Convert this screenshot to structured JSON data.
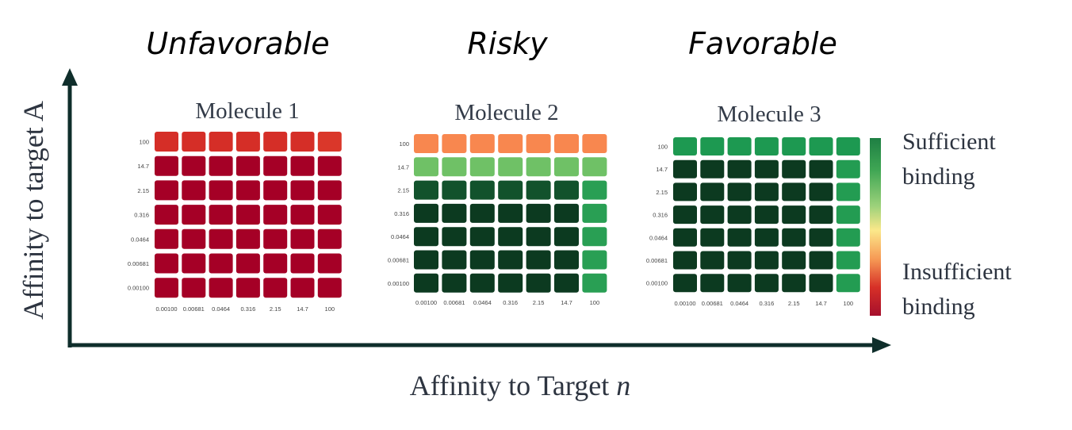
{
  "categories": [
    {
      "label": "Unfavorable"
    },
    {
      "label": "Risky"
    },
    {
      "label": "Favorable"
    }
  ],
  "axes": {
    "y_label": "Affinity to target A",
    "x_label_main": "Affinity to Target ",
    "x_label_italic": "n"
  },
  "legend": {
    "top_line1": "Sufficient",
    "top_line2": "binding",
    "bottom_line1": "Insufficient",
    "bottom_line2": "binding",
    "colors": [
      "#006837",
      "#1a9850",
      "#66bd63",
      "#d9ef8b",
      "#fee08b",
      "#fdae61",
      "#f46d43",
      "#d73027",
      "#a50026"
    ]
  },
  "chart_data": [
    {
      "type": "heatmap",
      "title": "Molecule 1",
      "row_labels": [
        "100",
        "14.7",
        "2.15",
        "0.316",
        "0.0464",
        "0.00681",
        "0.00100"
      ],
      "col_labels": [
        "0.00100",
        "0.00681",
        "0.0464",
        "0.316",
        "2.15",
        "14.7",
        "100"
      ],
      "values": [
        [
          0.12,
          0.12,
          0.12,
          0.12,
          0.12,
          0.12,
          0.14
        ],
        [
          0.0,
          0.0,
          0.0,
          0.0,
          0.0,
          0.0,
          0.0
        ],
        [
          0.0,
          0.0,
          0.0,
          0.0,
          0.0,
          0.0,
          0.0
        ],
        [
          0.0,
          0.0,
          0.0,
          0.0,
          0.0,
          0.0,
          0.0
        ],
        [
          0.0,
          0.0,
          0.0,
          0.0,
          0.0,
          0.0,
          0.0
        ],
        [
          0.0,
          0.0,
          0.0,
          0.0,
          0.0,
          0.0,
          0.0
        ],
        [
          0.0,
          0.0,
          0.0,
          0.0,
          0.0,
          0.0,
          0.0
        ]
      ]
    },
    {
      "type": "heatmap",
      "title": "Molecule 2",
      "row_labels": [
        "100",
        "14.7",
        "2.15",
        "0.316",
        "0.0464",
        "0.00681",
        "0.00100"
      ],
      "col_labels": [
        "0.00100",
        "0.00681",
        "0.0464",
        "0.316",
        "2.15",
        "14.7",
        "100"
      ],
      "values": [
        [
          0.3,
          0.3,
          0.3,
          0.3,
          0.3,
          0.3,
          0.3
        ],
        [
          0.74,
          0.74,
          0.74,
          0.74,
          0.74,
          0.74,
          0.74
        ],
        [
          0.93,
          0.93,
          0.93,
          0.93,
          0.93,
          0.93,
          0.85
        ],
        [
          0.98,
          0.98,
          0.98,
          0.98,
          0.98,
          0.98,
          0.85
        ],
        [
          0.98,
          0.98,
          0.98,
          0.98,
          0.98,
          0.98,
          0.85
        ],
        [
          0.98,
          0.98,
          0.98,
          0.98,
          0.98,
          0.98,
          0.85
        ],
        [
          0.98,
          0.98,
          0.98,
          0.98,
          0.98,
          0.98,
          0.85
        ]
      ]
    },
    {
      "type": "heatmap",
      "title": "Molecule 3",
      "row_labels": [
        "100",
        "14.7",
        "2.15",
        "0.316",
        "0.0464",
        "0.00681",
        "0.00100"
      ],
      "col_labels": [
        "0.00100",
        "0.00681",
        "0.0464",
        "0.316",
        "2.15",
        "14.7",
        "100"
      ],
      "values": [
        [
          0.87,
          0.87,
          0.87,
          0.87,
          0.87,
          0.87,
          0.87
        ],
        [
          0.98,
          0.98,
          0.98,
          0.98,
          0.98,
          0.98,
          0.86
        ],
        [
          0.98,
          0.98,
          0.98,
          0.98,
          0.98,
          0.98,
          0.86
        ],
        [
          0.98,
          0.98,
          0.98,
          0.98,
          0.98,
          0.98,
          0.86
        ],
        [
          0.98,
          0.98,
          0.98,
          0.98,
          0.98,
          0.98,
          0.86
        ],
        [
          0.98,
          0.98,
          0.98,
          0.98,
          0.98,
          0.98,
          0.86
        ],
        [
          0.98,
          0.98,
          0.98,
          0.98,
          0.98,
          0.98,
          0.86
        ]
      ]
    }
  ]
}
